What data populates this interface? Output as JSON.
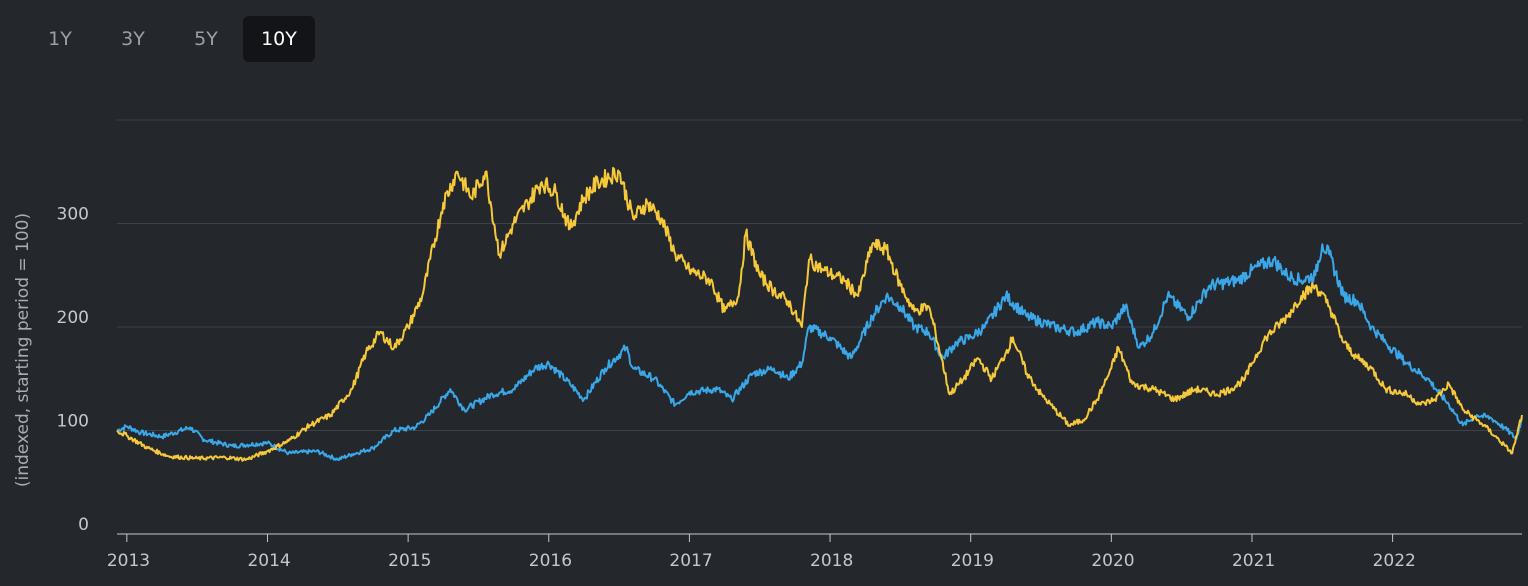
{
  "range_tabs": [
    {
      "label": "1Y",
      "active": false
    },
    {
      "label": "3Y",
      "active": false
    },
    {
      "label": "5Y",
      "active": false
    },
    {
      "label": "10Y",
      "active": true
    }
  ],
  "chart_data": {
    "type": "line",
    "title": "",
    "xlabel": "",
    "ylabel": "(indexed, starting period = 100)",
    "ylim": [
      0,
      400
    ],
    "xlim": [
      2012.93,
      2022.92
    ],
    "yticks": [
      0,
      100,
      200,
      300
    ],
    "xticks": [
      "2013",
      "2014",
      "2015",
      "2016",
      "2017",
      "2018",
      "2019",
      "2020",
      "2021",
      "2022"
    ],
    "grid": true,
    "legend": "none",
    "series": [
      {
        "color": "#3aa7e8",
        "points": [
          [
            2012.93,
            100
          ],
          [
            2013.0,
            104
          ],
          [
            2013.1,
            98
          ],
          [
            2013.25,
            94
          ],
          [
            2013.45,
            103
          ],
          [
            2013.55,
            91
          ],
          [
            2013.75,
            85
          ],
          [
            2014.0,
            88
          ],
          [
            2014.15,
            78
          ],
          [
            2014.35,
            80
          ],
          [
            2014.5,
            72
          ],
          [
            2014.6,
            77
          ],
          [
            2014.75,
            83
          ],
          [
            2014.9,
            100
          ],
          [
            2015.05,
            103
          ],
          [
            2015.15,
            115
          ],
          [
            2015.3,
            140
          ],
          [
            2015.4,
            120
          ],
          [
            2015.6,
            135
          ],
          [
            2015.75,
            140
          ],
          [
            2015.9,
            160
          ],
          [
            2016.0,
            165
          ],
          [
            2016.15,
            145
          ],
          [
            2016.25,
            130
          ],
          [
            2016.4,
            160
          ],
          [
            2016.55,
            180
          ],
          [
            2016.6,
            160
          ],
          [
            2016.75,
            150
          ],
          [
            2016.9,
            125
          ],
          [
            2017.0,
            137
          ],
          [
            2017.2,
            140
          ],
          [
            2017.3,
            130
          ],
          [
            2017.45,
            155
          ],
          [
            2017.6,
            160
          ],
          [
            2017.7,
            150
          ],
          [
            2017.8,
            165
          ],
          [
            2017.85,
            200
          ],
          [
            2018.0,
            190
          ],
          [
            2018.15,
            170
          ],
          [
            2018.3,
            210
          ],
          [
            2018.4,
            230
          ],
          [
            2018.5,
            220
          ],
          [
            2018.6,
            200
          ],
          [
            2018.7,
            195
          ],
          [
            2018.8,
            170
          ],
          [
            2018.9,
            185
          ],
          [
            2019.0,
            190
          ],
          [
            2019.1,
            200
          ],
          [
            2019.25,
            230
          ],
          [
            2019.4,
            210
          ],
          [
            2019.6,
            200
          ],
          [
            2019.75,
            195
          ],
          [
            2019.9,
            205
          ],
          [
            2020.0,
            200
          ],
          [
            2020.1,
            220
          ],
          [
            2020.2,
            180
          ],
          [
            2020.3,
            195
          ],
          [
            2020.4,
            230
          ],
          [
            2020.55,
            210
          ],
          [
            2020.7,
            240
          ],
          [
            2020.9,
            245
          ],
          [
            2021.0,
            255
          ],
          [
            2021.15,
            265
          ],
          [
            2021.25,
            250
          ],
          [
            2021.35,
            245
          ],
          [
            2021.45,
            250
          ],
          [
            2021.5,
            280
          ],
          [
            2021.55,
            270
          ],
          [
            2021.65,
            230
          ],
          [
            2021.75,
            225
          ],
          [
            2021.85,
            200
          ],
          [
            2021.95,
            185
          ],
          [
            2022.1,
            165
          ],
          [
            2022.25,
            150
          ],
          [
            2022.4,
            125
          ],
          [
            2022.5,
            105
          ],
          [
            2022.6,
            115
          ],
          [
            2022.7,
            112
          ],
          [
            2022.8,
            102
          ],
          [
            2022.88,
            92
          ],
          [
            2022.92,
            112
          ]
        ]
      },
      {
        "color": "#f5c93a",
        "points": [
          [
            2012.93,
            100
          ],
          [
            2013.0,
            95
          ],
          [
            2013.15,
            83
          ],
          [
            2013.3,
            75
          ],
          [
            2013.5,
            73
          ],
          [
            2013.7,
            74
          ],
          [
            2013.85,
            72
          ],
          [
            2014.0,
            80
          ],
          [
            2014.15,
            90
          ],
          [
            2014.3,
            105
          ],
          [
            2014.45,
            115
          ],
          [
            2014.6,
            140
          ],
          [
            2014.7,
            175
          ],
          [
            2014.8,
            195
          ],
          [
            2014.9,
            180
          ],
          [
            2015.0,
            200
          ],
          [
            2015.1,
            230
          ],
          [
            2015.25,
            320
          ],
          [
            2015.35,
            350
          ],
          [
            2015.45,
            325
          ],
          [
            2015.55,
            350
          ],
          [
            2015.65,
            270
          ],
          [
            2015.75,
            300
          ],
          [
            2015.85,
            320
          ],
          [
            2015.95,
            340
          ],
          [
            2016.05,
            330
          ],
          [
            2016.15,
            295
          ],
          [
            2016.25,
            325
          ],
          [
            2016.35,
            340
          ],
          [
            2016.5,
            350
          ],
          [
            2016.6,
            305
          ],
          [
            2016.7,
            320
          ],
          [
            2016.8,
            305
          ],
          [
            2016.9,
            270
          ],
          [
            2017.0,
            255
          ],
          [
            2017.15,
            245
          ],
          [
            2017.25,
            215
          ],
          [
            2017.35,
            230
          ],
          [
            2017.4,
            290
          ],
          [
            2017.5,
            250
          ],
          [
            2017.6,
            235
          ],
          [
            2017.7,
            225
          ],
          [
            2017.8,
            200
          ],
          [
            2017.85,
            265
          ],
          [
            2017.95,
            255
          ],
          [
            2018.1,
            245
          ],
          [
            2018.2,
            230
          ],
          [
            2018.3,
            280
          ],
          [
            2018.4,
            275
          ],
          [
            2018.5,
            240
          ],
          [
            2018.6,
            215
          ],
          [
            2018.7,
            220
          ],
          [
            2018.75,
            195
          ],
          [
            2018.85,
            135
          ],
          [
            2018.95,
            150
          ],
          [
            2019.05,
            170
          ],
          [
            2019.15,
            150
          ],
          [
            2019.25,
            175
          ],
          [
            2019.3,
            190
          ],
          [
            2019.4,
            155
          ],
          [
            2019.5,
            135
          ],
          [
            2019.6,
            120
          ],
          [
            2019.7,
            105
          ],
          [
            2019.8,
            110
          ],
          [
            2019.9,
            130
          ],
          [
            2020.0,
            160
          ],
          [
            2020.05,
            180
          ],
          [
            2020.15,
            145
          ],
          [
            2020.3,
            140
          ],
          [
            2020.45,
            130
          ],
          [
            2020.6,
            140
          ],
          [
            2020.75,
            135
          ],
          [
            2020.85,
            140
          ],
          [
            2020.95,
            150
          ],
          [
            2021.0,
            165
          ],
          [
            2021.1,
            190
          ],
          [
            2021.25,
            210
          ],
          [
            2021.35,
            230
          ],
          [
            2021.45,
            240
          ],
          [
            2021.55,
            220
          ],
          [
            2021.65,
            185
          ],
          [
            2021.75,
            170
          ],
          [
            2021.85,
            160
          ],
          [
            2021.95,
            140
          ],
          [
            2022.1,
            135
          ],
          [
            2022.2,
            125
          ],
          [
            2022.3,
            130
          ],
          [
            2022.4,
            145
          ],
          [
            2022.5,
            120
          ],
          [
            2022.65,
            105
          ],
          [
            2022.8,
            85
          ],
          [
            2022.85,
            78
          ],
          [
            2022.92,
            115
          ]
        ]
      }
    ]
  }
}
